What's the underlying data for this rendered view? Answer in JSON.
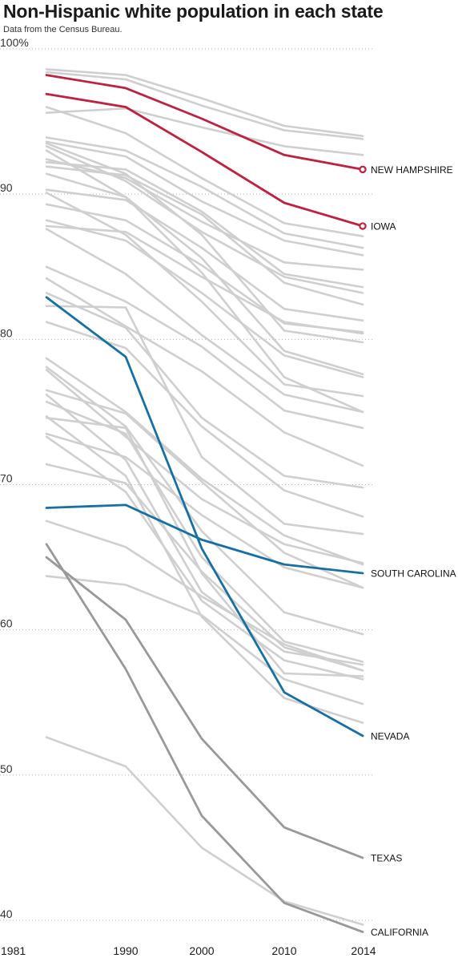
{
  "header": {
    "title": "Non-Hispanic white population in each state",
    "subtitle": "Data from the Census Bureau."
  },
  "colors": {
    "background_line": "#cfcfcf",
    "gray_highlight": "#999999",
    "red": "#c0213f",
    "blue": "#1670a4",
    "grid": "#b5b5b5"
  },
  "chart_data": {
    "type": "line",
    "title": "Non-Hispanic white population in each state",
    "subtitle": "Data from the Census Bureau.",
    "x": [
      1981,
      1990,
      2000,
      2010,
      2014
    ],
    "x_tick_labels": [
      "1981",
      "1990",
      "2000",
      "2010",
      "2014"
    ],
    "ylim": [
      40,
      100
    ],
    "y_ticks": [
      40,
      50,
      60,
      70,
      80,
      90,
      100
    ],
    "y_tick_labels": [
      "40",
      "50",
      "60",
      "70",
      "80",
      "90",
      "100%"
    ],
    "grid": "horizontal-dotted",
    "highlighted": [
      {
        "name": "NEW HAMPSHIRE",
        "color": "red",
        "values": [
          98.2,
          97.3,
          95.2,
          92.7,
          91.7
        ]
      },
      {
        "name": "IOWA",
        "color": "red",
        "values": [
          96.9,
          96.0,
          92.9,
          89.4,
          87.8
        ]
      },
      {
        "name": "SOUTH CAROLINA",
        "color": "blue",
        "values": [
          68.4,
          68.6,
          66.2,
          64.5,
          63.9
        ]
      },
      {
        "name": "NEVADA",
        "color": "blue",
        "values": [
          82.9,
          78.8,
          65.6,
          55.7,
          52.7
        ]
      },
      {
        "name": "TEXAS",
        "color": "gray",
        "values": [
          65.0,
          60.7,
          52.5,
          46.4,
          44.3
        ]
      },
      {
        "name": "CALIFORNIA",
        "color": "gray",
        "values": [
          65.9,
          57.3,
          47.2,
          41.2,
          39.2
        ]
      }
    ],
    "series": [
      {
        "values": [
          98.6,
          98.2,
          96.6,
          94.7,
          94.0
        ]
      },
      {
        "values": [
          98.4,
          97.9,
          96.1,
          94.4,
          93.8
        ]
      },
      {
        "values": [
          95.6,
          95.9,
          94.6,
          93.3,
          92.7
        ]
      },
      {
        "values": [
          96.0,
          94.2,
          91.1,
          88.0,
          87.1
        ]
      },
      {
        "values": [
          93.9,
          93.0,
          90.5,
          87.3,
          86.3
        ]
      },
      {
        "values": [
          93.6,
          92.6,
          89.5,
          86.8,
          85.8
        ]
      },
      {
        "values": [
          92.4,
          91.1,
          88.1,
          85.3,
          84.8
        ]
      },
      {
        "values": [
          92.2,
          91.7,
          88.8,
          84.5,
          83.6
        ]
      },
      {
        "values": [
          93.3,
          90.9,
          87.4,
          84.3,
          83.2
        ]
      },
      {
        "values": [
          91.9,
          91.3,
          88.6,
          83.9,
          82.4
        ]
      },
      {
        "values": [
          90.3,
          89.6,
          86.3,
          82.1,
          81.3
        ]
      },
      {
        "values": [
          89.3,
          88.2,
          85.1,
          81.1,
          80.5
        ]
      },
      {
        "values": [
          87.8,
          87.4,
          84.3,
          81.2,
          80.4
        ]
      },
      {
        "values": [
          93.5,
          91.4,
          87.2,
          80.6,
          79.8
        ]
      },
      {
        "values": [
          91.4,
          89.8,
          85.6,
          79.2,
          77.6
        ]
      },
      {
        "values": [
          88.2,
          86.8,
          83.2,
          78.9,
          77.4
        ]
      },
      {
        "values": [
          93.0,
          89.8,
          84.6,
          77.4,
          75.0
        ]
      },
      {
        "values": [
          90.1,
          87.2,
          82.6,
          76.9,
          76.1
        ]
      },
      {
        "values": [
          87.6,
          84.5,
          80.3,
          76.2,
          75.0
        ]
      },
      {
        "values": [
          85.0,
          82.6,
          79.5,
          75.1,
          73.9
        ]
      },
      {
        "values": [
          84.2,
          80.9,
          77.8,
          73.6,
          71.3
        ]
      },
      {
        "values": [
          83.2,
          80.8,
          74.6,
          70.6,
          69.8
        ]
      },
      {
        "values": [
          81.2,
          79.4,
          74.0,
          69.6,
          67.8
        ]
      },
      {
        "values": [
          82.3,
          82.2,
          71.9,
          67.3,
          66.6
        ]
      },
      {
        "values": [
          78.7,
          75.0,
          70.4,
          66.5,
          64.5
        ]
      },
      {
        "values": [
          77.9,
          73.3,
          69.0,
          65.9,
          64.6
        ]
      },
      {
        "values": [
          76.5,
          74.9,
          70.2,
          65.3,
          62.9
        ]
      },
      {
        "values": [
          73.5,
          71.9,
          67.9,
          64.3,
          62.9
        ]
      },
      {
        "values": [
          78.1,
          74.0,
          66.8,
          61.2,
          59.7
        ]
      },
      {
        "values": [
          75.7,
          73.5,
          65.0,
          59.2,
          57.8
        ]
      },
      {
        "values": [
          71.4,
          70.1,
          64.0,
          58.8,
          57.2
        ]
      },
      {
        "values": [
          76.2,
          71.7,
          62.6,
          58.5,
          57.6
        ]
      },
      {
        "values": [
          74.6,
          73.9,
          63.9,
          57.0,
          56.8
        ]
      },
      {
        "values": [
          73.3,
          69.5,
          62.0,
          57.9,
          56.6
        ]
      },
      {
        "values": [
          67.5,
          65.7,
          62.3,
          59.0,
          57.2
        ]
      },
      {
        "values": [
          63.7,
          63.1,
          61.0,
          56.6,
          54.9
        ]
      },
      {
        "values": [
          74.7,
          70.6,
          60.9,
          55.3,
          53.6
        ]
      },
      {
        "values": [
          52.6,
          50.6,
          45.0,
          41.3,
          39.7
        ]
      }
    ]
  }
}
